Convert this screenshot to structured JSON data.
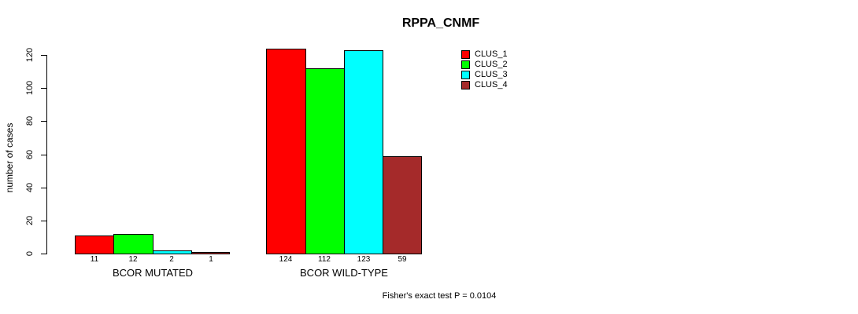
{
  "chart_data": {
    "type": "bar",
    "title": "RPPA_CNMF",
    "ylabel": "number of cases",
    "xlabel": "",
    "ylim": [
      0,
      120
    ],
    "yticks": [
      0,
      20,
      40,
      60,
      80,
      100,
      120
    ],
    "grid": false,
    "legend_position": "top-right",
    "categories": [
      "BCOR MUTATED",
      "BCOR WILD-TYPE"
    ],
    "series": [
      {
        "name": "CLUS_1",
        "color": "#ff0000",
        "values": [
          11,
          124
        ]
      },
      {
        "name": "CLUS_2",
        "color": "#00ff00",
        "values": [
          12,
          112
        ]
      },
      {
        "name": "CLUS_3",
        "color": "#00ffff",
        "values": [
          2,
          123
        ]
      },
      {
        "name": "CLUS_4",
        "color": "#a52a2a",
        "values": [
          1,
          59
        ]
      }
    ],
    "bar_value_labels_shown": true,
    "footnote": "Fisher's exact test P = 0.0104"
  },
  "colors": {
    "background": "#ffffff",
    "axis": "#000000",
    "text": "#000000"
  }
}
